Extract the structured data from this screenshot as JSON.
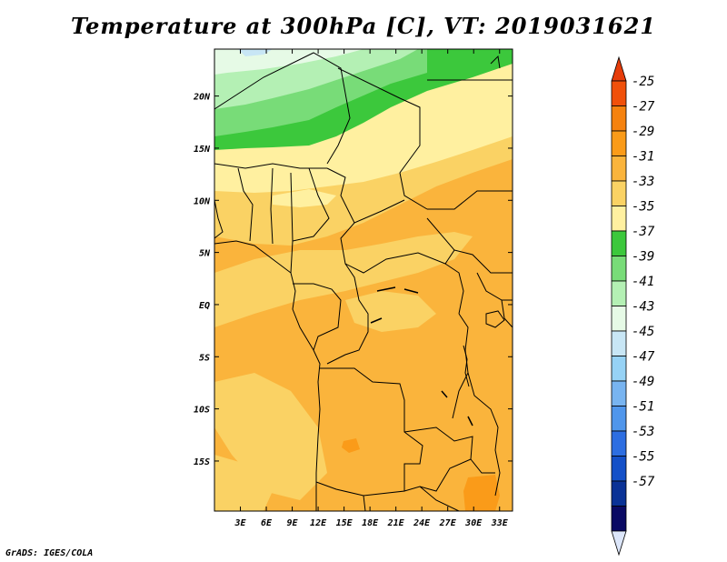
{
  "title": "Temperature at 300hPa [C], VT: 2019031621",
  "credit": "GrADS: IGES/COLA",
  "map": {
    "lat_labels": [
      "20N",
      "15N",
      "10N",
      "5N",
      "EQ",
      "5S",
      "10S",
      "15S"
    ],
    "lat_values": [
      20,
      15,
      10,
      5,
      0,
      -5,
      -10,
      -15
    ],
    "lon_labels": [
      "3E",
      "6E",
      "9E",
      "12E",
      "15E",
      "18E",
      "21E",
      "24E",
      "27E",
      "30E",
      "33E"
    ],
    "lon_values": [
      3,
      6,
      9,
      12,
      15,
      18,
      21,
      24,
      27,
      30,
      33
    ],
    "lat_range": [
      -19.8,
      24.5
    ],
    "lon_range": [
      0,
      34.5
    ]
  },
  "colorbar": {
    "labels": [
      "-25",
      "-27",
      "-29",
      "-31",
      "-33",
      "-35",
      "-37",
      "-39",
      "-41",
      "-43",
      "-45",
      "-47",
      "-49",
      "-51",
      "-53",
      "-55",
      "-57"
    ],
    "colors": [
      "#f0500a",
      "#f5820f",
      "#fa9b19",
      "#fab43c",
      "#fad264",
      "#fff0a0",
      "#3cc83c",
      "#78dc78",
      "#b4f0b4",
      "#e6fae6",
      "#c8e6f5",
      "#96d2f5",
      "#78b4f0",
      "#5096eb",
      "#2d6ee1",
      "#1450c8",
      "#0a3296",
      "#0a0a64"
    ],
    "top_color": "#e63c0a",
    "bottom_color": "#dce6fa"
  },
  "colors": {
    "warm": "#fab43c",
    "mid": "#fad264",
    "pale": "#fff0a0",
    "deep_orange": "#fa9b19",
    "green": "#3cc83c",
    "light_green": "#78dc78",
    "pale_green": "#b4f0b4",
    "very_pale_green": "#e6fae6",
    "pale_blue": "#c8e6f5"
  }
}
